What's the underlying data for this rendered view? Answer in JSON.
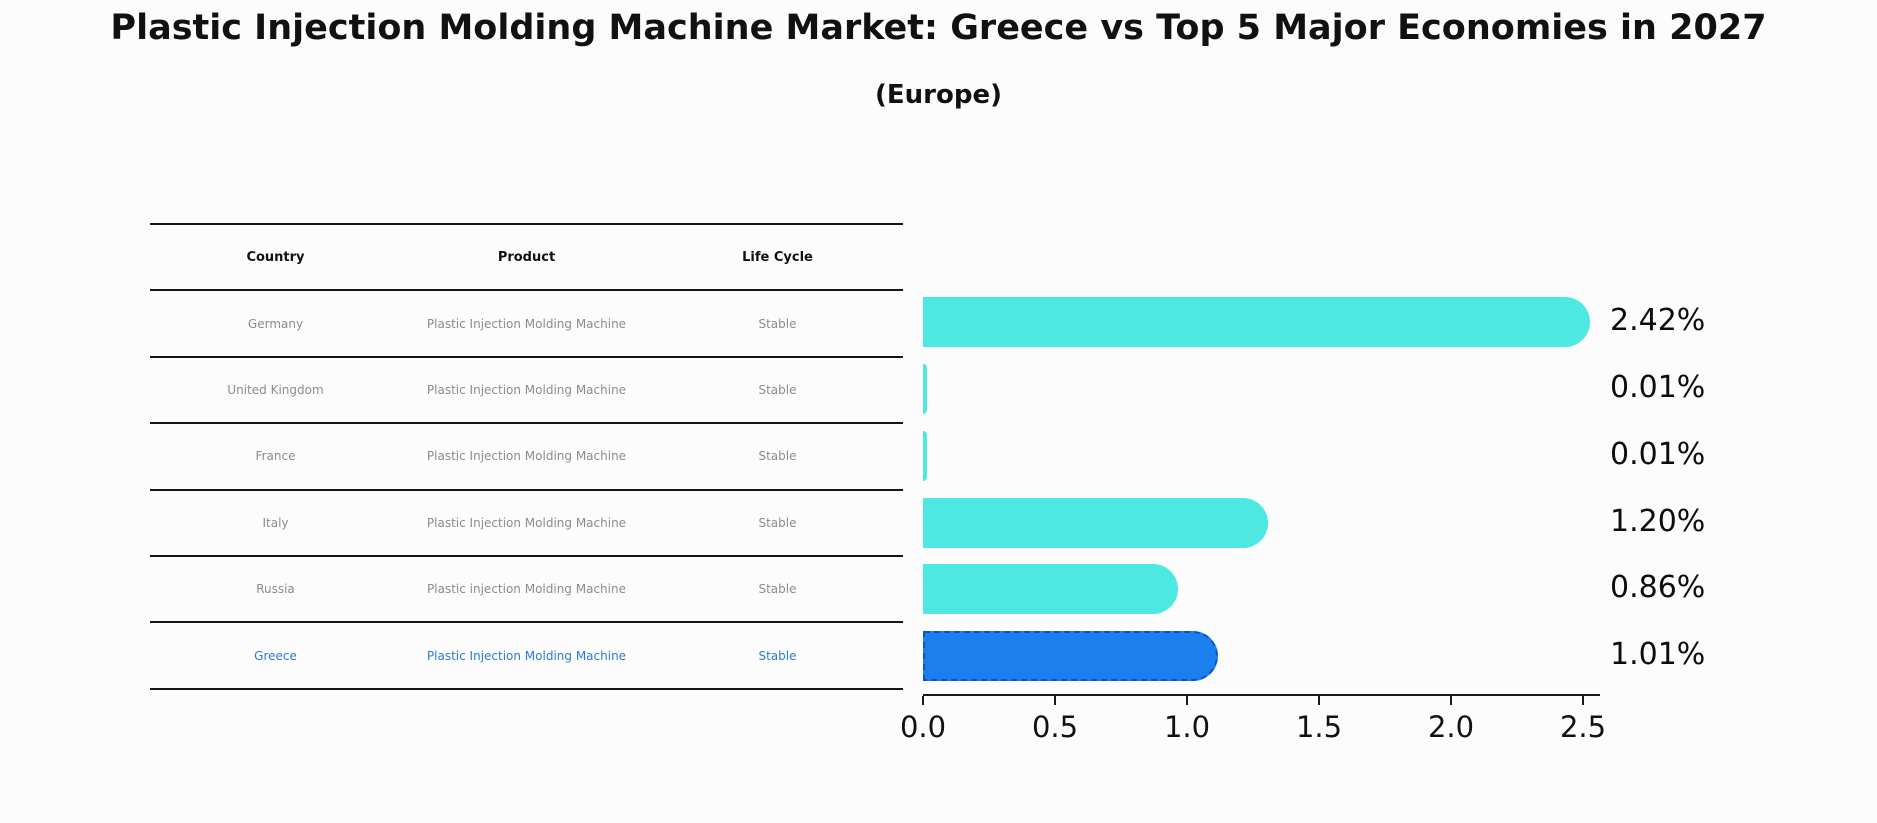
{
  "title": "Plastic Injection Molding Machine Market: Greece vs Top 5 Major Economies in 2027",
  "subtitle": "(Europe)",
  "table": {
    "headers": [
      "Country",
      "Product",
      "Life Cycle"
    ],
    "rows": [
      {
        "country": "Germany",
        "product": "Plastic Injection Molding Machine",
        "life_cycle": "Stable",
        "highlight": false
      },
      {
        "country": "United Kingdom",
        "product": "Plastic Injection Molding Machine",
        "life_cycle": "Stable",
        "highlight": false
      },
      {
        "country": "France",
        "product": "Plastic Injection Molding Machine",
        "life_cycle": "Stable",
        "highlight": false
      },
      {
        "country": "Italy",
        "product": "Plastic Injection Molding Machine",
        "life_cycle": "Stable",
        "highlight": false
      },
      {
        "country": "Russia",
        "product": "Plastic injection Molding Machine",
        "life_cycle": "Stable",
        "highlight": false
      },
      {
        "country": "Greece",
        "product": "Plastic Injection Molding Machine",
        "life_cycle": "Stable",
        "highlight": true
      }
    ]
  },
  "chart_data": {
    "type": "bar",
    "orientation": "horizontal",
    "title": "Plastic Injection Molding Machine Market: Greece vs Top 5 Major Economies in 2027 (Europe)",
    "categories": [
      "Germany",
      "United Kingdom",
      "France",
      "Italy",
      "Russia",
      "Greece"
    ],
    "values": [
      2.42,
      0.01,
      0.01,
      1.2,
      0.86,
      1.01
    ],
    "value_labels": [
      "2.42%",
      "0.01%",
      "0.01%",
      "1.20%",
      "0.86%",
      "1.01%"
    ],
    "xlim": [
      0.0,
      2.5
    ],
    "xtick_labels": [
      "0.0",
      "0.5",
      "1.0",
      "1.5",
      "2.0",
      "2.5"
    ],
    "grid": false,
    "legend": false,
    "bar_color": "#4de8e1",
    "highlight_color": "#1b80ee",
    "highlight_border_color": "#0a52c8",
    "highlight_index": 5
  }
}
